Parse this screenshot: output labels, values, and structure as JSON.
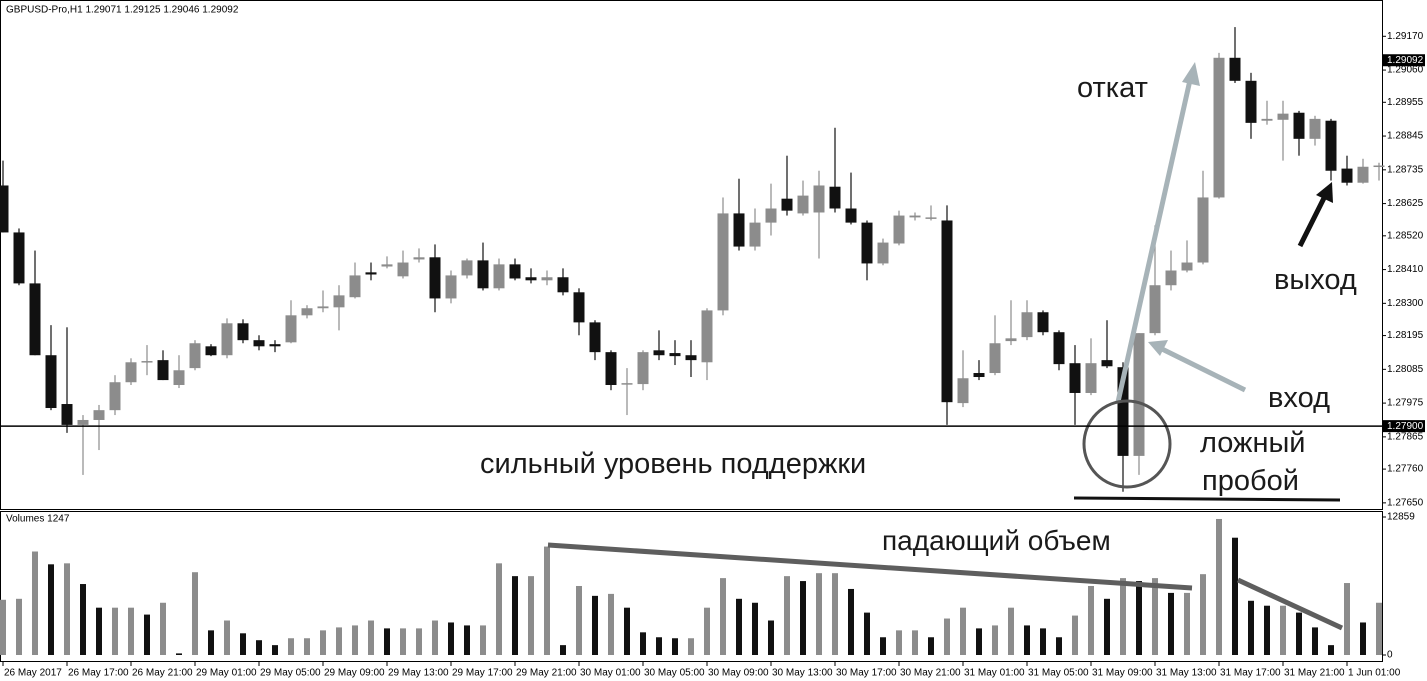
{
  "chart_data": {
    "type": "candlestick",
    "title": "GBPUSD-Pro,H1  1.29071 1.29125 1.29046 1.29092",
    "categories": [
      "26 May 2017",
      null,
      null,
      null,
      "26 May 17:00",
      null,
      null,
      null,
      "26 May 21:00",
      null,
      null,
      null,
      "29 May 01:00",
      null,
      null,
      null,
      "29 May 05:00",
      null,
      null,
      null,
      "29 May 09:00",
      null,
      null,
      null,
      "29 May 13:00",
      null,
      null,
      null,
      "29 May 17:00",
      null,
      null,
      null,
      "29 May 21:00",
      null,
      null,
      null,
      "30 May 01:00",
      null,
      null,
      null,
      "30 May 05:00",
      null,
      null,
      null,
      "30 May 09:00",
      null,
      null,
      null,
      "30 May 13:00",
      null,
      null,
      null,
      "30 May 17:00",
      null,
      null,
      null,
      "30 May 21:00",
      null,
      null,
      null,
      "31 May 01:00",
      null,
      null,
      null,
      "31 May 05:00",
      null,
      null,
      null,
      "31 May 09:00",
      null,
      null,
      null,
      "31 May 13:00",
      null,
      null,
      null,
      "31 May 17:00",
      null,
      null,
      null,
      "31 May 21:00",
      null,
      null,
      null,
      "1 Jun 01:00",
      null,
      null
    ],
    "open": [
      1.28684,
      1.28531,
      1.28365,
      1.28131,
      1.27972,
      1.27904,
      1.2792,
      1.27952,
      1.28043,
      1.28108,
      1.28115,
      1.28034,
      1.28089,
      1.2816,
      1.28131,
      1.28235,
      1.2818,
      1.28167,
      1.28173,
      1.28261,
      1.28284,
      1.28287,
      1.2832,
      1.28401,
      1.2842,
      1.28388,
      1.28443,
      1.2845,
      1.28316,
      1.28391,
      1.2844,
      1.28349,
      1.28427,
      1.28385,
      1.28375,
      1.28385,
      1.28336,
      1.28238,
      1.28141,
      1.28037,
      1.28037,
      1.28147,
      1.28138,
      1.28131,
      1.28108,
      1.28277,
      1.28593,
      1.28485,
      1.28563,
      1.28641,
      1.28593,
      1.28596,
      1.2868,
      1.28609,
      1.28563,
      1.2843,
      1.28495,
      1.2858,
      1.28576,
      1.2857,
      1.27975,
      1.28073,
      1.28073,
      1.28177,
      1.2819,
      1.28271,
      1.28206,
      1.28105,
      1.28008,
      1.28115,
      1.28092,
      1.27803,
      1.28203,
      1.28359,
      1.28407,
      1.28433,
      1.28645,
      1.291,
      1.29025,
      1.28895,
      1.28898,
      1.28921,
      1.28836,
      1.28895,
      1.28739,
      1.28693,
      1.28745
    ],
    "high": [
      1.28765,
      1.28544,
      1.28472,
      1.28229,
      1.28222,
      1.27936,
      1.27969,
      1.28066,
      1.28121,
      1.28164,
      1.28147,
      1.28131,
      1.2818,
      1.28167,
      1.28251,
      1.28248,
      1.28196,
      1.2818,
      1.2831,
      1.28294,
      1.28342,
      1.28359,
      1.28433,
      1.28433,
      1.28453,
      1.28472,
      1.28479,
      1.28492,
      1.28407,
      1.28446,
      1.28498,
      1.28446,
      1.28446,
      1.28414,
      1.28407,
      1.28414,
      1.28349,
      1.28245,
      1.28147,
      1.28089,
      1.28147,
      1.28212,
      1.2818,
      1.2818,
      1.28284,
      1.28645,
      1.28706,
      1.28609,
      1.2869,
      1.28781,
      1.287,
      1.28732,
      1.28872,
      1.28726,
      1.2857,
      1.28511,
      1.28602,
      1.28596,
      1.28619,
      1.28619,
      1.28147,
      1.28115,
      1.28261,
      1.2831,
      1.2831,
      1.28277,
      1.28212,
      1.28164,
      1.28186,
      1.28245,
      1.28108,
      1.28203,
      1.28554,
      1.28472,
      1.28505,
      1.28732,
      1.29116,
      1.292,
      1.29051,
      1.2896,
      1.2896,
      1.28927,
      1.28911,
      1.28901,
      1.28781,
      1.28771,
      1.28758
    ],
    "low": [
      1.28531,
      1.28359,
      1.28131,
      1.27952,
      1.27878,
      1.27741,
      1.27822,
      1.27936,
      1.28034,
      1.28066,
      1.2805,
      1.28024,
      1.28082,
      1.28128,
      1.28121,
      1.2817,
      1.28147,
      1.28141,
      1.2817,
      1.28251,
      1.28271,
      1.28212,
      1.28316,
      1.28375,
      1.28414,
      1.28381,
      1.28433,
      1.28271,
      1.283,
      1.28381,
      1.28342,
      1.28342,
      1.28375,
      1.28365,
      1.28359,
      1.28326,
      1.28196,
      1.28115,
      1.28017,
      1.27936,
      1.28017,
      1.28115,
      1.28099,
      1.2806,
      1.2805,
      1.28261,
      1.28472,
      1.28472,
      1.28521,
      1.28586,
      1.28586,
      1.28446,
      1.28596,
      1.28557,
      1.28375,
      1.28424,
      1.28489,
      1.2857,
      1.2857,
      1.27904,
      1.27962,
      1.2805,
      1.28066,
      1.28164,
      1.2818,
      1.28196,
      1.28082,
      1.27904,
      1.28001,
      1.28089,
      1.27686,
      1.27741,
      1.28196,
      1.28342,
      1.28401,
      1.28427,
      1.28641,
      1.29018,
      1.28836,
      1.28882,
      1.28765,
      1.28781,
      1.28814,
      1.287,
      1.28684,
      1.2869,
      1.287
    ],
    "close": [
      1.28531,
      1.28365,
      1.28131,
      1.27959,
      1.27904,
      1.2792,
      1.27952,
      1.28043,
      1.28108,
      1.28112,
      1.2805,
      1.28082,
      1.2817,
      1.28131,
      1.28235,
      1.2818,
      1.2816,
      1.2816,
      1.28261,
      1.28284,
      1.2829,
      1.28326,
      1.28391,
      1.28394,
      1.28427,
      1.28433,
      1.2845,
      1.28316,
      1.28391,
      1.2844,
      1.28349,
      1.28427,
      1.28381,
      1.28375,
      1.28385,
      1.28336,
      1.28238,
      1.28141,
      1.28034,
      1.2804,
      1.28141,
      1.28131,
      1.28128,
      1.28115,
      1.28277,
      1.28593,
      1.28485,
      1.28563,
      1.28609,
      1.28602,
      1.28651,
      1.28684,
      1.28609,
      1.28563,
      1.2843,
      1.28498,
      1.28586,
      1.28586,
      1.2858,
      1.27978,
      1.28056,
      1.2806,
      1.2817,
      1.28186,
      1.28271,
      1.28206,
      1.28102,
      1.28008,
      1.28105,
      1.28095,
      1.27803,
      1.28203,
      1.28359,
      1.28407,
      1.28433,
      1.28645,
      1.291,
      1.29025,
      1.28888,
      1.28901,
      1.28918,
      1.28836,
      1.28901,
      1.28732,
      1.28693,
      1.28745,
      1.28749
    ],
    "up_color": "#8c8c8c",
    "down_color": "#111111",
    "ylim": [
      1.2763,
      1.29285
    ],
    "yticks": [
      {
        "value": 1.2765,
        "label": "1.27650"
      },
      {
        "value": 1.2776,
        "label": "1.27760"
      },
      {
        "value": 1.27865,
        "label": "1.27865"
      },
      {
        "value": 1.27975,
        "label": "1.27975"
      },
      {
        "value": 1.28085,
        "label": "1.28085"
      },
      {
        "value": 1.28195,
        "label": "1.28195"
      },
      {
        "value": 1.283,
        "label": "1.28300"
      },
      {
        "value": 1.2841,
        "label": "1.28410"
      },
      {
        "value": 1.2852,
        "label": "1.28520"
      },
      {
        "value": 1.28625,
        "label": "1.28625"
      },
      {
        "value": 1.28735,
        "label": "1.28735"
      },
      {
        "value": 1.28845,
        "label": "1.28845"
      },
      {
        "value": 1.28955,
        "label": "1.28955"
      },
      {
        "value": 1.2906,
        "label": "1.29060"
      },
      {
        "value": 1.2917,
        "label": "1.29170"
      }
    ],
    "support": {
      "value": 1.279,
      "label": "1.27900"
    },
    "current_price": {
      "value": 1.29092,
      "label": "1.29092"
    },
    "volume": {
      "title": "Volumes 1247",
      "values": [
        5144,
        5236,
        9644,
        8450,
        8542,
        6613,
        4409,
        4409,
        4409,
        3766,
        4868,
        150,
        7715,
        2296,
        3215,
        2021,
        1378,
        919,
        1561,
        1561,
        2296,
        2572,
        2756,
        3215,
        2480,
        2480,
        2480,
        3215,
        3031,
        2756,
        2756,
        8542,
        7348,
        7348,
        10104,
        919,
        6430,
        5511,
        5695,
        4409,
        2113,
        1653,
        1561,
        1561,
        4409,
        7164,
        5236,
        4868,
        3215,
        7348,
        6889,
        7624,
        7624,
        6154,
        3950,
        1653,
        2296,
        2296,
        1653,
        3399,
        4409,
        2480,
        2756,
        4409,
        2756,
        2480,
        1653,
        3674,
        6430,
        5236,
        7164,
        6889,
        7164,
        5787,
        5787,
        7532,
        12675,
        10930,
        5052,
        4593,
        4593,
        3950,
        2572,
        919,
        6705,
        3031,
        4868
      ],
      "ylim": [
        0,
        12859
      ],
      "yticks": [
        0,
        12859
      ]
    },
    "annotations": {
      "pullback": "откат",
      "exit": "выход",
      "entry": "вход",
      "false_breakout_1": "ложный",
      "false_breakout_2": "пробой",
      "support_text": "сильный уровень поддержки",
      "falling_volume": "падающий объем"
    }
  }
}
